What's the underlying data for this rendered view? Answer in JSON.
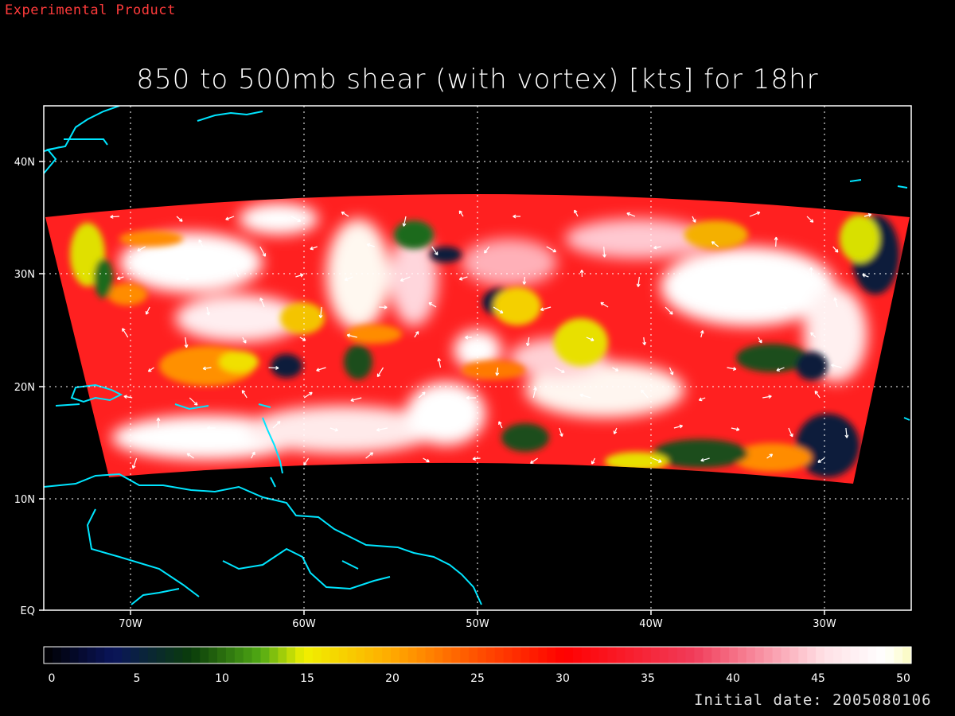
{
  "header": {
    "product_label": "Experimental Product",
    "title": "850 to 500mb shear (with vortex) [kts] for 18hr"
  },
  "map": {
    "lat_labels": [
      "40N",
      "30N",
      "20N",
      "10N",
      "EQ"
    ],
    "lon_labels": [
      "70W",
      "60W",
      "50W",
      "40W",
      "30W"
    ],
    "coastline_color": "#00e5ff",
    "vector_color": "#ffffff"
  },
  "colorbar": {
    "tick_labels": [
      "0",
      "5",
      "10",
      "15",
      "20",
      "25",
      "30",
      "35",
      "40",
      "45",
      "50"
    ],
    "range": [
      0,
      50
    ]
  },
  "footer": {
    "initial_date": "Initial date: 2005080106"
  }
}
